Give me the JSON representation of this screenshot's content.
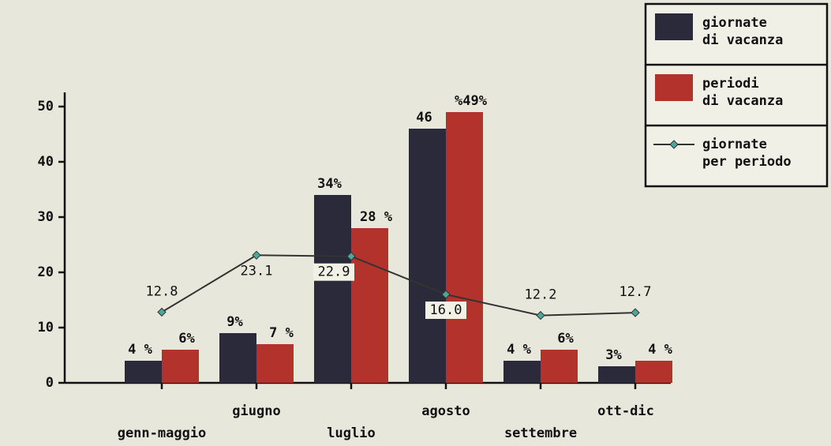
{
  "chart_data": {
    "type": "bar",
    "categories": [
      "genn-maggio",
      "giugno",
      "luglio",
      "agosto",
      "settembre",
      "ott-dic"
    ],
    "series": [
      {
        "name": "giornate di vacanza",
        "color": "#2b2a3a",
        "values": [
          4,
          9,
          34,
          46,
          4,
          3
        ],
        "value_labels": [
          "4 %",
          "9%",
          "34%",
          "46",
          "4 %",
          "3%"
        ]
      },
      {
        "name": "periodi di vacanza",
        "color": "#b3322b",
        "values": [
          6,
          7,
          28,
          49,
          6,
          4
        ],
        "value_labels": [
          "6%",
          "7 %",
          "28 %",
          "%49%",
          "6%",
          "4 %"
        ]
      },
      {
        "name": "giornate per periodo",
        "type": "line",
        "color": "#333333",
        "marker_color": "#4aa89a",
        "values": [
          12.8,
          23.1,
          22.9,
          16.0,
          12.2,
          12.7
        ],
        "value_labels": [
          "12.8",
          "23.1",
          "22.9",
          "16.0",
          "12.2",
          "12.7"
        ]
      }
    ],
    "ylim": [
      0,
      52
    ],
    "yticks": [
      0,
      10,
      20,
      30,
      40,
      50
    ],
    "legend": "top-right"
  }
}
